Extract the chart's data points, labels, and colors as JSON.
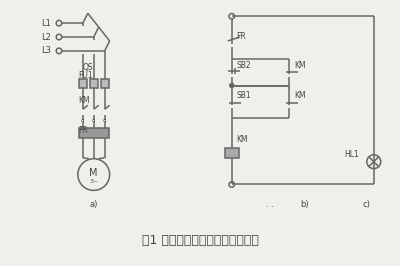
{
  "title": "图1 电动机全压起动电气控制线路",
  "title_fontsize": 9,
  "bg_color": "#f0efea",
  "line_color": "#666666",
  "text_color": "#444444",
  "box_color": "#888888",
  "label_a": "a)",
  "label_b": "b)",
  "label_c": "c)",
  "dots": ". .",
  "L1": "L1",
  "L2": "L2",
  "L3": "L3",
  "QS": "QS",
  "FU1": "FU1",
  "KM_left": "KM",
  "FR_left": "FR",
  "FR_right": "FR",
  "SB2": "SB2",
  "SB1": "SB1",
  "KM_r1": "KM",
  "KM_r2": "KM",
  "KM_r3": "KM",
  "HL1": "HL1"
}
